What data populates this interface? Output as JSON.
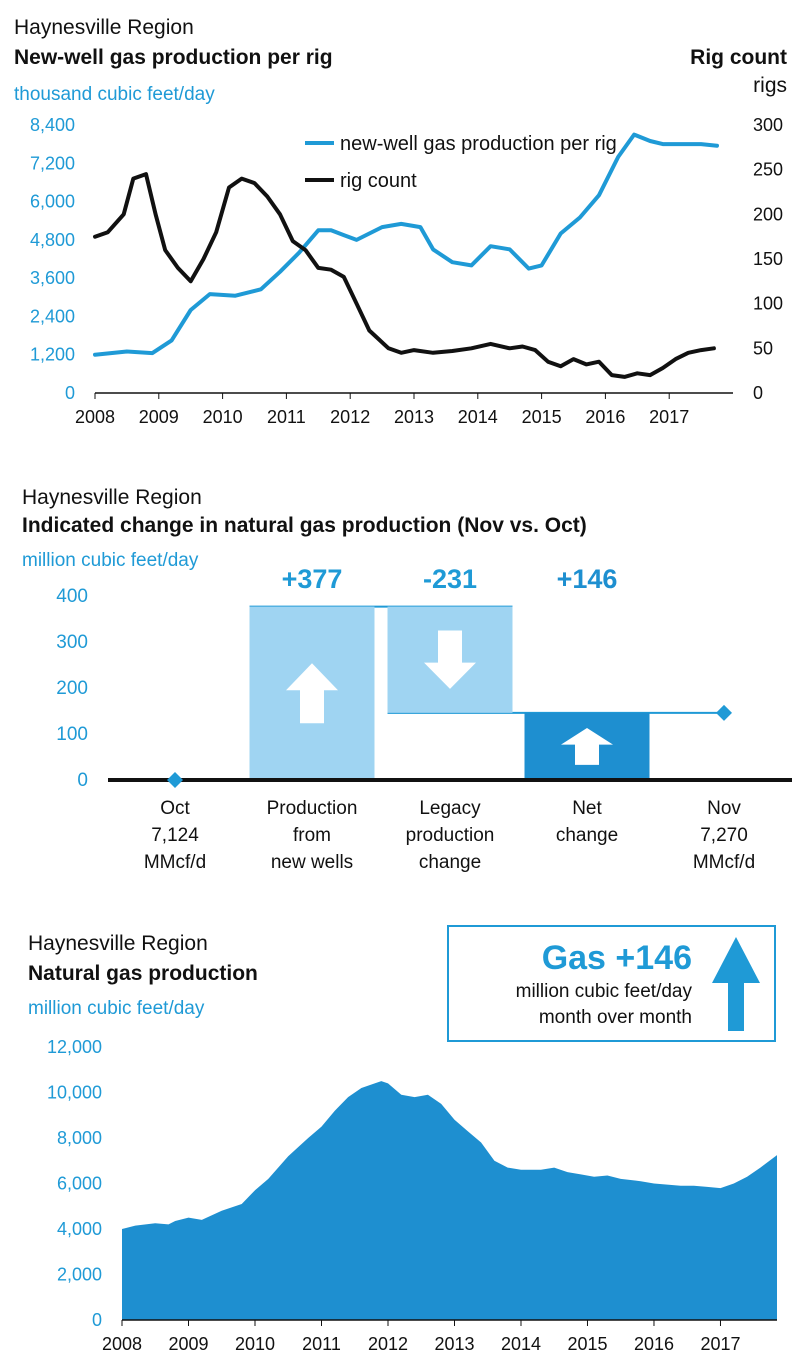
{
  "colors": {
    "blue": "#1f9ad6",
    "light_blue": "#9fd4f2",
    "dark_blue": "#1e8fd0",
    "black": "#111111"
  },
  "panel1": {
    "region": "Haynesville Region",
    "title": "New-well gas production per rig",
    "left_unit": "thousand cubic feet/day",
    "right_title": "Rig count",
    "right_unit": "rigs"
  },
  "panel2": {
    "region": "Haynesville Region",
    "title": "Indicated change in natural gas production (Nov vs. Oct)",
    "unit": "million cubic feet/day"
  },
  "panel3": {
    "region": "Haynesville Region",
    "title": "Natural gas production",
    "unit": "million cubic feet/day",
    "callout": {
      "headline": "Gas +146",
      "line1": "million cubic feet/day",
      "line2": "month over month",
      "icon": "up-arrow-icon"
    }
  },
  "chart_data": [
    {
      "type": "line",
      "x_ticks": [
        "2008",
        "2009",
        "2010",
        "2011",
        "2012",
        "2013",
        "2014",
        "2015",
        "2016",
        "2017"
      ],
      "y_left": {
        "ticks": [
          "0",
          "1,200",
          "2,400",
          "3,600",
          "4,800",
          "6,000",
          "7,200",
          "8,400"
        ],
        "ylim": [
          0,
          8400
        ]
      },
      "y_right": {
        "ticks": [
          "0",
          "50",
          "100",
          "150",
          "200",
          "250",
          "300"
        ],
        "ylim": [
          0,
          300
        ]
      },
      "legend": {
        "placement": "top-right"
      },
      "series": [
        {
          "name": "new-well gas production per rig",
          "axis": "left",
          "color": "#1f9ad6",
          "x": [
            2008.0,
            2008.5,
            2008.9,
            2009.2,
            2009.5,
            2009.8,
            2010.2,
            2010.6,
            2010.9,
            2011.2,
            2011.5,
            2011.7,
            2011.9,
            2012.1,
            2012.5,
            2012.8,
            2013.1,
            2013.3,
            2013.6,
            2013.9,
            2014.2,
            2014.5,
            2014.8,
            2015.0,
            2015.3,
            2015.6,
            2015.9,
            2016.2,
            2016.45,
            2016.7,
            2016.9,
            2017.2,
            2017.5,
            2017.75
          ],
          "y": [
            1200,
            1300,
            1250,
            1650,
            2600,
            3100,
            3050,
            3250,
            3800,
            4400,
            5100,
            5100,
            4950,
            4800,
            5200,
            5300,
            5200,
            4500,
            4100,
            4000,
            4600,
            4500,
            3900,
            4000,
            5000,
            5500,
            6200,
            7400,
            8100,
            7900,
            7800,
            7800,
            7800,
            7750
          ]
        },
        {
          "name": "rig count",
          "axis": "right",
          "color": "#111111",
          "x": [
            2008.0,
            2008.2,
            2008.45,
            2008.6,
            2008.8,
            2008.95,
            2009.1,
            2009.3,
            2009.5,
            2009.7,
            2009.9,
            2010.1,
            2010.3,
            2010.5,
            2010.7,
            2010.9,
            2011.1,
            2011.3,
            2011.5,
            2011.7,
            2011.9,
            2012.1,
            2012.3,
            2012.6,
            2012.8,
            2013.0,
            2013.3,
            2013.6,
            2013.9,
            2014.2,
            2014.5,
            2014.7,
            2014.9,
            2015.1,
            2015.3,
            2015.5,
            2015.7,
            2015.9,
            2016.1,
            2016.3,
            2016.5,
            2016.7,
            2016.9,
            2017.1,
            2017.3,
            2017.5,
            2017.7
          ],
          "y": [
            175,
            180,
            200,
            240,
            245,
            200,
            160,
            140,
            125,
            150,
            180,
            230,
            240,
            235,
            220,
            200,
            170,
            160,
            140,
            138,
            130,
            100,
            70,
            50,
            45,
            48,
            45,
            47,
            50,
            55,
            50,
            52,
            48,
            35,
            30,
            38,
            32,
            35,
            20,
            18,
            22,
            20,
            28,
            38,
            45,
            48,
            50
          ]
        }
      ]
    },
    {
      "type": "bar",
      "categories": [
        "Oct\n7,124\nMMcf/d",
        "Production\nfrom\nnew wells",
        "Legacy\nproduction\nchange",
        "Net\nchange",
        "Nov\n7,270\nMMcf/d"
      ],
      "y_ticks": [
        "0",
        "100",
        "200",
        "300",
        "400"
      ],
      "ylim": [
        0,
        400
      ],
      "bars": [
        {
          "category": "Production\nfrom\nnew wells",
          "base": 0,
          "top": 377,
          "label": "+377",
          "direction": "up",
          "color": "#9fd4f2"
        },
        {
          "category": "Legacy\nproduction\nchange",
          "base": 146,
          "top": 377,
          "label": "-231",
          "direction": "down",
          "color": "#9fd4f2"
        },
        {
          "category": "Net\nchange",
          "base": 0,
          "top": 146,
          "label": "+146",
          "direction": "up",
          "color": "#1e8fd0"
        }
      ],
      "markers": [
        {
          "category": "Oct\n7,124\nMMcf/d",
          "value": 0
        },
        {
          "category": "Nov\n7,270\nMMcf/d",
          "value": 146
        }
      ]
    },
    {
      "type": "area",
      "x_ticks": [
        "2008",
        "2009",
        "2010",
        "2011",
        "2012",
        "2013",
        "2014",
        "2015",
        "2016",
        "2017"
      ],
      "y_ticks": [
        "0",
        "2,000",
        "4,000",
        "6,000",
        "8,000",
        "10,000",
        "12,000"
      ],
      "ylim": [
        0,
        12000
      ],
      "color": "#1e8fd0",
      "x": [
        2008.0,
        2008.2,
        2008.5,
        2008.7,
        2008.8,
        2009.0,
        2009.2,
        2009.5,
        2009.8,
        2010.0,
        2010.2,
        2010.5,
        2010.8,
        2011.0,
        2011.2,
        2011.4,
        2011.6,
        2011.8,
        2011.9,
        2012.0,
        2012.2,
        2012.4,
        2012.6,
        2012.8,
        2013.0,
        2013.2,
        2013.4,
        2013.6,
        2013.8,
        2014.0,
        2014.3,
        2014.5,
        2014.7,
        2014.9,
        2015.1,
        2015.3,
        2015.5,
        2015.8,
        2016.0,
        2016.2,
        2016.4,
        2016.6,
        2016.8,
        2017.0,
        2017.2,
        2017.4,
        2017.6,
        2017.85
      ],
      "y": [
        4000,
        4150,
        4250,
        4200,
        4350,
        4500,
        4400,
        4800,
        5100,
        5700,
        6200,
        7200,
        8000,
        8500,
        9200,
        9800,
        10200,
        10400,
        10500,
        10400,
        9900,
        9800,
        9900,
        9500,
        8800,
        8300,
        7800,
        7000,
        6700,
        6600,
        6600,
        6700,
        6500,
        6400,
        6300,
        6350,
        6200,
        6100,
        6000,
        5950,
        5900,
        5900,
        5850,
        5800,
        6000,
        6300,
        6700,
        7250
      ]
    }
  ]
}
